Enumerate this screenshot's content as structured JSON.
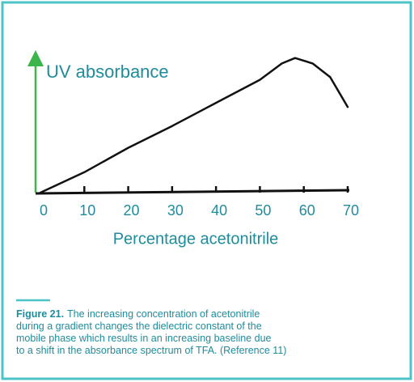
{
  "chart_data": {
    "type": "line",
    "ylabel": "UV absorbance",
    "xlabel": "Percentage acetonitrile",
    "x": [
      0,
      10,
      20,
      30,
      40,
      50,
      55,
      58,
      62,
      66,
      70
    ],
    "values": [
      0,
      15,
      33,
      49,
      66,
      83,
      95,
      99,
      95,
      85,
      63
    ],
    "color": "#111111",
    "xlim": [
      0,
      70
    ],
    "xticks": [
      0,
      10,
      20,
      30,
      40,
      50,
      60,
      70
    ],
    "ylim": [
      0,
      100
    ]
  },
  "caption": {
    "label": "Figure 21.",
    "lines": [
      "The increasing concentration of acetonitrile",
      "during a gradient changes the dielectric constant of the",
      "mobile phase which results in an increasing baseline due",
      "to a shift in the absorbance spectrum of TFA. (Reference 11)"
    ]
  }
}
